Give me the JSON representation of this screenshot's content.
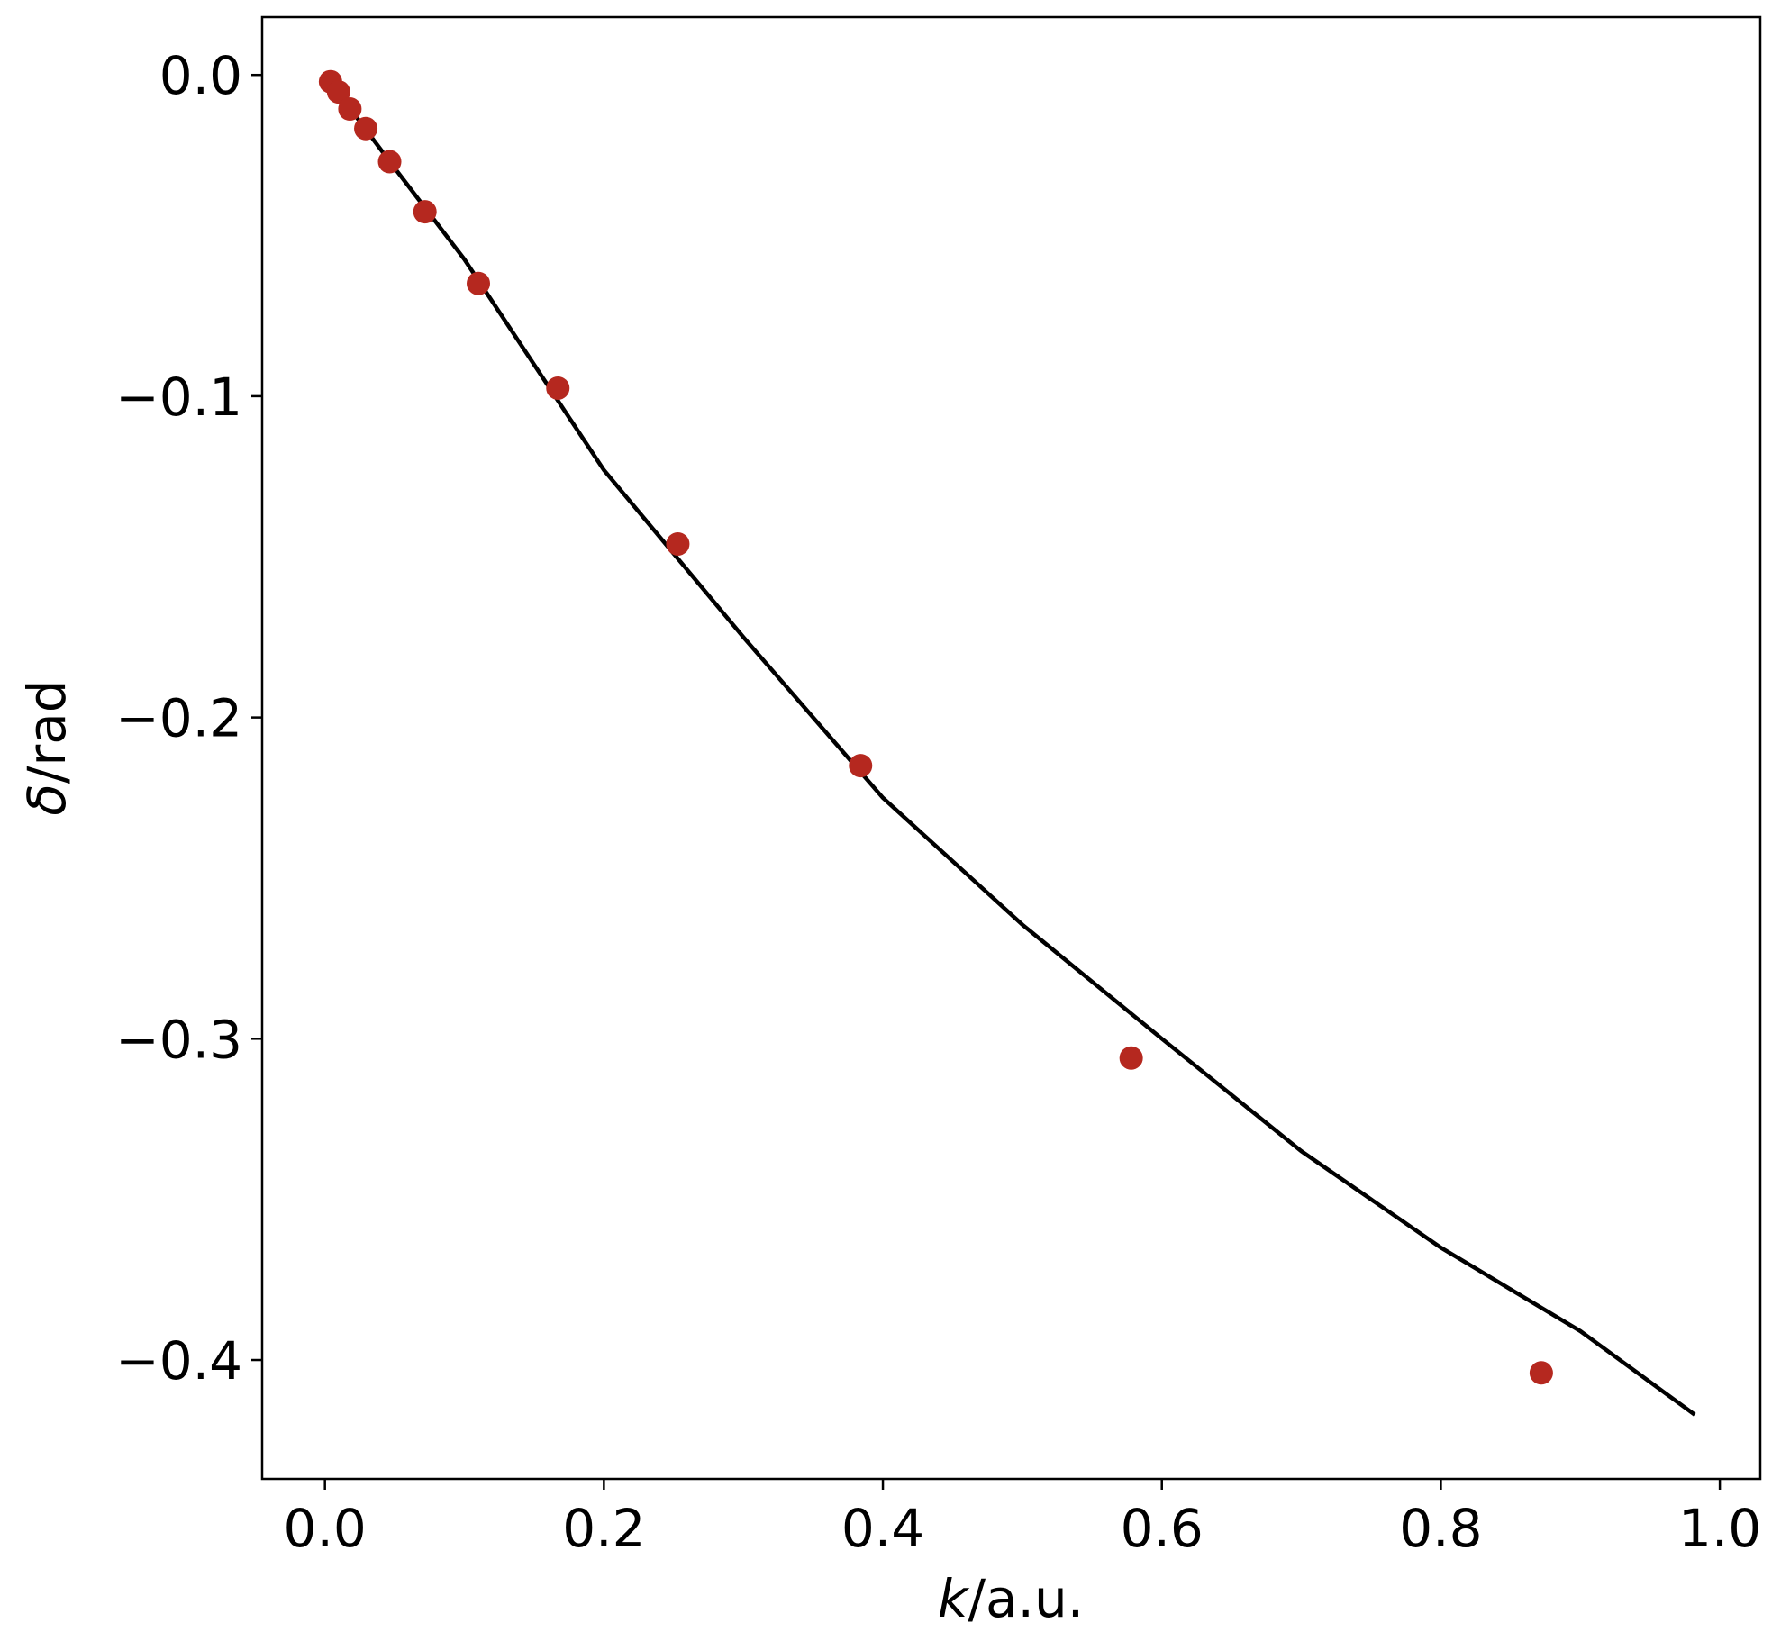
{
  "chart_data": {
    "type": "scatter",
    "xlabel": [
      "k",
      "/a.u."
    ],
    "ylabel": [
      "δ",
      "/rad"
    ],
    "xlim": [
      -0.045,
      1.029
    ],
    "ylim": [
      -0.437,
      0.018
    ],
    "xticks": [
      {
        "value": 0,
        "label": "0.0"
      },
      0.2,
      0.4,
      0.6,
      0.8,
      {
        "value": 1,
        "label": "1.0"
      }
    ],
    "yticks": [
      {
        "value": 0,
        "label": "0.0"
      },
      {
        "value": -0.1,
        "label": "−0.1"
      },
      {
        "value": -0.2,
        "label": "−0.2"
      },
      {
        "value": -0.3,
        "label": "−0.3"
      },
      {
        "value": -0.4,
        "label": "−0.4"
      }
    ],
    "series": [
      {
        "type": "scatter",
        "color": "#b5281f",
        "x": [
          0.004,
          0.0098,
          0.0179,
          0.0293,
          0.0464,
          0.0717,
          0.11,
          0.167,
          0.253,
          0.384,
          0.578,
          0.872
        ],
        "values": [
          -0.0021,
          -0.0053,
          -0.0106,
          -0.0167,
          -0.027,
          -0.0426,
          -0.0649,
          -0.0975,
          -0.146,
          -0.215,
          -0.306,
          -0.404
        ]
      },
      {
        "type": "line",
        "color": "#000000",
        "x": [
          0,
          0.05,
          0.1,
          0.2,
          0.3,
          0.4,
          0.5,
          0.6,
          0.7,
          0.8,
          0.9,
          0.982
        ],
        "values": [
          0,
          -0.029,
          -0.0574,
          -0.123,
          -0.175,
          -0.225,
          -0.2645,
          -0.3,
          -0.335,
          -0.365,
          -0.391,
          -0.417
        ]
      }
    ]
  }
}
